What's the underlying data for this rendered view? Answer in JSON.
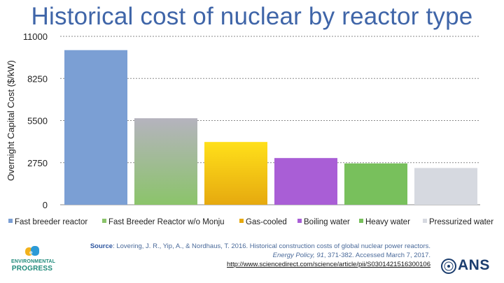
{
  "title": "Historical cost of nuclear by reactor type",
  "chart_data": {
    "type": "bar",
    "ylabel": "Overnight Capital Cost ($/kW)",
    "ylim": [
      0,
      11000
    ],
    "yticks": [
      0,
      2750,
      5500,
      8250,
      11000
    ],
    "grid": true,
    "legend_position": "bottom",
    "series": [
      {
        "name": "Fast breeder reactor",
        "value": 10100,
        "color": "#7b9fd4"
      },
      {
        "name": "Fast Breeder Reactor w/o Monju",
        "value": 5650,
        "color": "#8bc46a",
        "color_top": "#b5b3be"
      },
      {
        "name": "Gas-cooled",
        "value": 4100,
        "color": "#e6a90f",
        "color_top": "#ffe01a"
      },
      {
        "name": "Boiling water",
        "value": 3050,
        "color": "#a95ed6"
      },
      {
        "name": "Heavy water",
        "value": 2700,
        "color": "#78c05c"
      },
      {
        "name": "Pressurized water",
        "value": 2400,
        "color": "#d6d9e0"
      }
    ]
  },
  "source": {
    "label": "Source",
    "line1": ": Lovering, J. R., Yip, A., & Nordhaus, T. 2016. Historical construction costs of global nuclear power reactors.",
    "journal": "Energy Policy, 91",
    "line2_rest": ", 371-382. Accessed March 7, 2017.",
    "url": "http://www.sciencedirect.com/science/article/pii/S0301421516300106"
  },
  "logos": {
    "ep_line1": "ENVIRONMENTAL",
    "ep_line2": "PROGRESS",
    "ans": "ANS"
  }
}
